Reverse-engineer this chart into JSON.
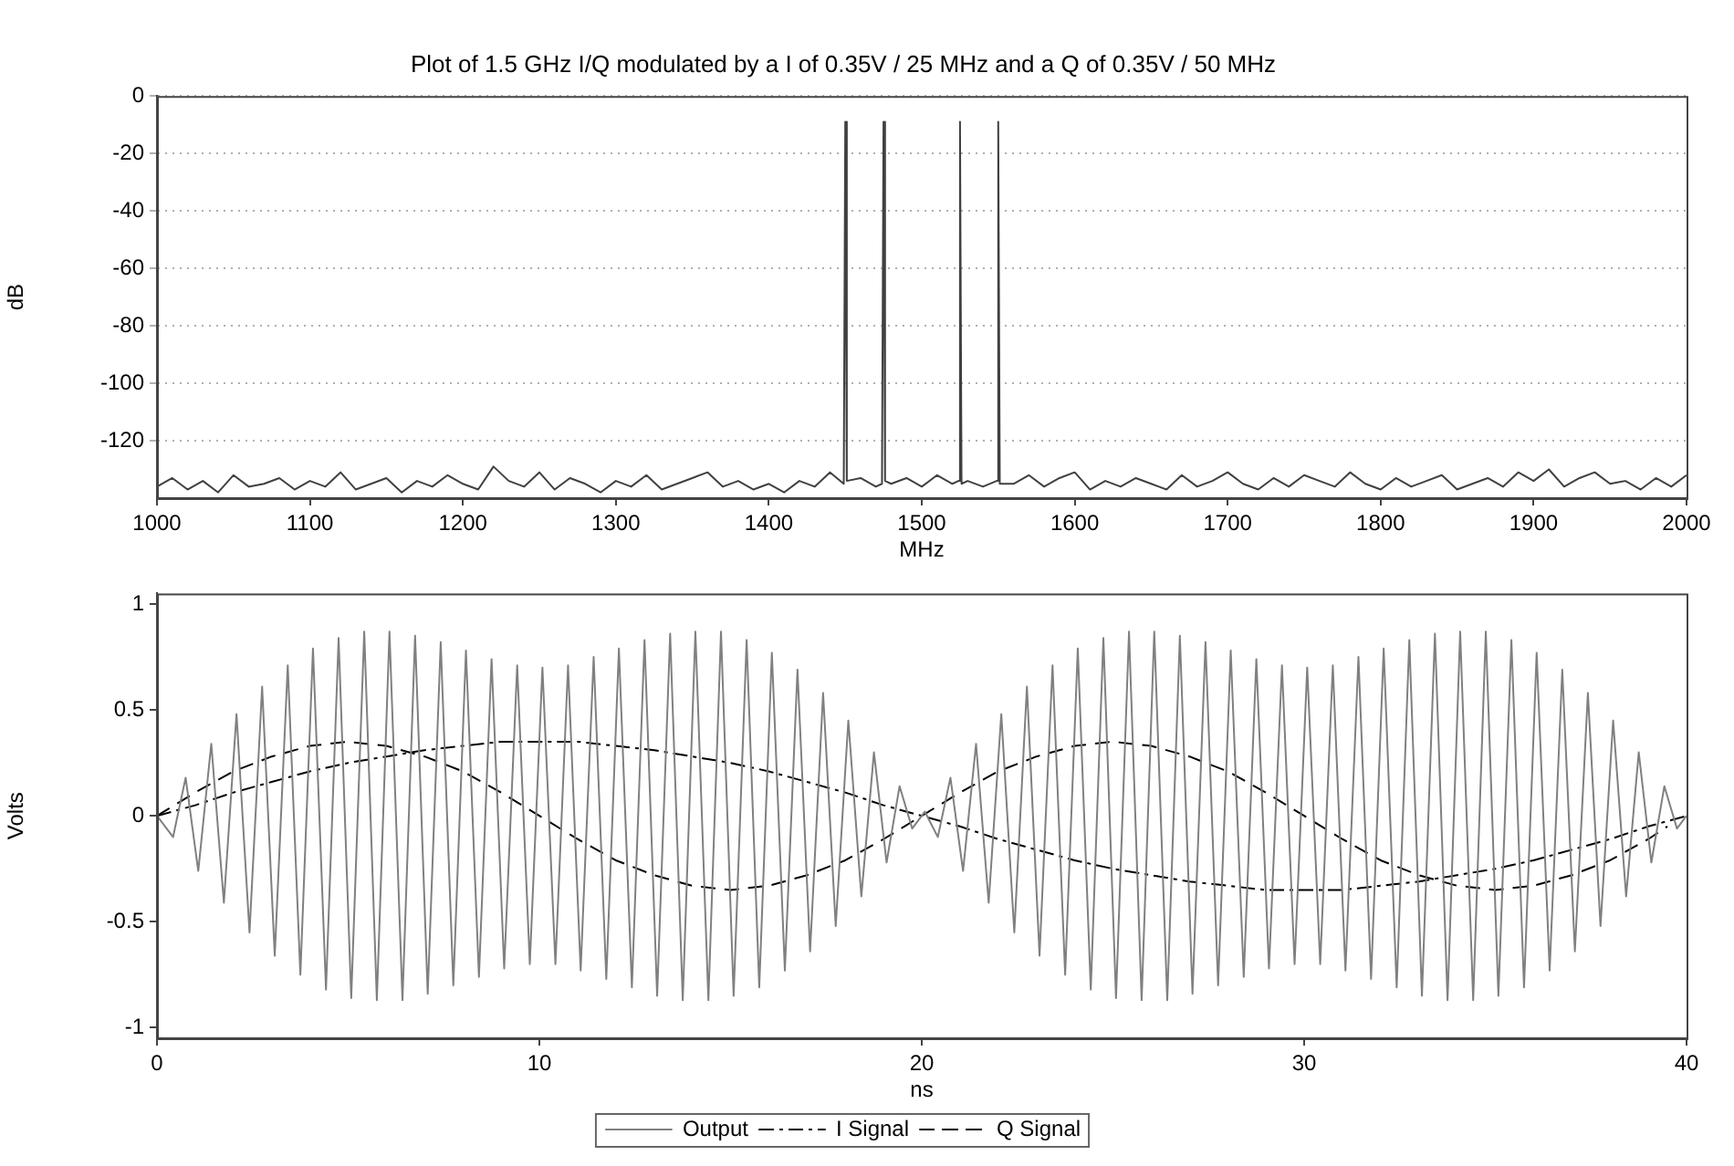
{
  "chart_data": [
    {
      "type": "line",
      "title": "Plot of 1.5 GHz I/Q modulated by a I of 0.35V / 25 MHz and a Q of 0.35V / 50 MHz",
      "xlabel": "MHz",
      "ylabel": "dB",
      "xlim": [
        1000,
        2000
      ],
      "xticks": [
        1000,
        1100,
        1200,
        1300,
        1400,
        1500,
        1600,
        1700,
        1800,
        1900,
        2000
      ],
      "ylim": [
        -140,
        0
      ],
      "yticks": [
        0,
        -20,
        -40,
        -60,
        -80,
        -100,
        -120
      ],
      "grid": "y",
      "legend": false,
      "series": [
        {
          "color": "#404040",
          "x": [
            1000,
            1010,
            1020,
            1030,
            1040,
            1050,
            1060,
            1070,
            1080,
            1090,
            1100,
            1110,
            1120,
            1130,
            1140,
            1150,
            1160,
            1170,
            1180,
            1190,
            1200,
            1210,
            1220,
            1230,
            1240,
            1250,
            1260,
            1270,
            1280,
            1290,
            1300,
            1310,
            1320,
            1330,
            1340,
            1350,
            1360,
            1370,
            1380,
            1390,
            1400,
            1410,
            1420,
            1430,
            1440,
            1449,
            1450,
            1451,
            1460,
            1470,
            1474,
            1475,
            1476,
            1480,
            1490,
            1500,
            1510,
            1520,
            1524,
            1525,
            1526,
            1530,
            1540,
            1549,
            1550,
            1551,
            1560,
            1570,
            1580,
            1590,
            1600,
            1610,
            1620,
            1630,
            1640,
            1650,
            1660,
            1670,
            1680,
            1690,
            1700,
            1710,
            1720,
            1730,
            1740,
            1750,
            1760,
            1770,
            1780,
            1790,
            1800,
            1810,
            1820,
            1830,
            1840,
            1850,
            1860,
            1870,
            1880,
            1890,
            1900,
            1910,
            1920,
            1930,
            1940,
            1950,
            1960,
            1970,
            1980,
            1990,
            2000
          ],
          "values": [
            -136,
            -133,
            -137,
            -134,
            -138,
            -132,
            -136,
            -135,
            -133,
            -137,
            -134,
            -136,
            -131,
            -137,
            -135,
            -133,
            -138,
            -134,
            -136,
            -132,
            -135,
            -137,
            -129,
            -134,
            -136,
            -131,
            -137,
            -133,
            -135,
            -138,
            -134,
            -136,
            -132,
            -137,
            -135,
            -133,
            -131,
            -136,
            -134,
            -137,
            -135,
            -138,
            -134,
            -136,
            -131,
            -135,
            -9,
            -134,
            -133,
            -136,
            -135,
            -9,
            -134,
            -135,
            -133,
            -136,
            -132,
            -135,
            -134,
            -9,
            -135,
            -134,
            -136,
            -134,
            -9,
            -135,
            -135,
            -132,
            -136,
            -133,
            -131,
            -137,
            -134,
            -136,
            -133,
            -135,
            -137,
            -132,
            -136,
            -134,
            -131,
            -135,
            -137,
            -133,
            -136,
            -132,
            -134,
            -136,
            -131,
            -135,
            -137,
            -133,
            -136,
            -134,
            -132,
            -137,
            -135,
            -133,
            -136,
            -131,
            -134,
            -130,
            -136,
            -133,
            -131,
            -135,
            -134,
            -137,
            -133,
            -136,
            -132
          ]
        }
      ]
    },
    {
      "type": "line",
      "xlabel": "ns",
      "ylabel": "Volts",
      "xlim": [
        0,
        40
      ],
      "xticks": [
        0,
        10,
        20,
        30,
        40
      ],
      "ylim": [
        -1.05,
        1.05
      ],
      "yticks": [
        -1,
        -0.5,
        0,
        0.5,
        1
      ],
      "legend": "bottom",
      "series": [
        {
          "name": "Output",
          "color": "#808080",
          "line_style": "solid",
          "x": [
            0,
            0.42,
            0.75,
            1.08,
            1.42,
            1.75,
            2.08,
            2.42,
            2.75,
            3.08,
            3.42,
            3.75,
            4.08,
            4.42,
            4.75,
            5.08,
            5.42,
            5.75,
            6.08,
            6.42,
            6.75,
            7.08,
            7.42,
            7.75,
            8.08,
            8.42,
            8.75,
            9.08,
            9.42,
            9.75,
            10.08,
            10.42,
            10.75,
            11.08,
            11.42,
            11.75,
            12.08,
            12.42,
            12.75,
            13.08,
            13.42,
            13.75,
            14.08,
            14.42,
            14.75,
            15.08,
            15.42,
            15.75,
            16.08,
            16.42,
            16.75,
            17.08,
            17.42,
            17.75,
            18.08,
            18.42,
            18.75,
            19.08,
            19.42,
            19.75,
            20.08,
            20.42,
            20.75,
            21.08,
            21.42,
            21.75,
            22.08,
            22.42,
            22.75,
            23.08,
            23.42,
            23.75,
            24.08,
            24.42,
            24.75,
            25.08,
            25.42,
            25.75,
            26.08,
            26.42,
            26.75,
            27.08,
            27.42,
            27.75,
            28.08,
            28.42,
            28.75,
            29.08,
            29.42,
            29.75,
            30.08,
            30.42,
            30.75,
            31.08,
            31.42,
            31.75,
            32.08,
            32.42,
            32.75,
            33.08,
            33.42,
            33.75,
            34.08,
            34.42,
            34.75,
            35.08,
            35.42,
            35.75,
            36.08,
            36.42,
            36.75,
            37.08,
            37.42,
            37.75,
            38.08,
            38.42,
            38.75,
            39.08,
            39.42,
            39.75,
            40
          ],
          "values": [
            0,
            -0.1,
            0.18,
            -0.26,
            0.34,
            -0.41,
            0.48,
            -0.55,
            0.61,
            -0.66,
            0.71,
            -0.75,
            0.79,
            -0.82,
            0.84,
            -0.86,
            0.87,
            -0.87,
            0.87,
            -0.87,
            0.85,
            -0.84,
            0.82,
            -0.8,
            0.78,
            -0.76,
            0.74,
            -0.72,
            0.71,
            -0.7,
            0.7,
            -0.7,
            0.71,
            -0.73,
            0.75,
            -0.77,
            0.79,
            -0.81,
            0.83,
            -0.85,
            0.86,
            -0.87,
            0.87,
            -0.87,
            0.87,
            -0.85,
            0.83,
            -0.81,
            0.77,
            -0.73,
            0.69,
            -0.64,
            0.58,
            -0.52,
            0.45,
            -0.38,
            0.3,
            -0.22,
            0.14,
            -0.06,
            0.02,
            -0.1,
            0.18,
            -0.26,
            0.34,
            -0.41,
            0.48,
            -0.55,
            0.61,
            -0.66,
            0.71,
            -0.75,
            0.79,
            -0.82,
            0.84,
            -0.86,
            0.87,
            -0.87,
            0.87,
            -0.87,
            0.85,
            -0.84,
            0.82,
            -0.8,
            0.78,
            -0.76,
            0.74,
            -0.72,
            0.71,
            -0.7,
            0.7,
            -0.7,
            0.71,
            -0.73,
            0.75,
            -0.77,
            0.79,
            -0.81,
            0.83,
            -0.85,
            0.86,
            -0.87,
            0.87,
            -0.87,
            0.87,
            -0.85,
            0.83,
            -0.81,
            0.77,
            -0.73,
            0.69,
            -0.64,
            0.58,
            -0.52,
            0.45,
            -0.38,
            0.3,
            -0.22,
            0.14,
            -0.06,
            0
          ]
        },
        {
          "name": "I Signal",
          "color": "#000000",
          "line_style": "dashdot",
          "x": [
            0,
            1,
            2,
            3,
            4,
            5,
            6,
            7,
            8,
            9,
            10,
            11,
            12,
            13,
            14,
            15,
            16,
            17,
            18,
            19,
            20,
            21,
            22,
            23,
            24,
            25,
            26,
            27,
            28,
            29,
            30,
            31,
            32,
            33,
            34,
            35,
            36,
            37,
            38,
            39,
            40
          ],
          "values": [
            0,
            0.05,
            0.11,
            0.16,
            0.21,
            0.25,
            0.28,
            0.31,
            0.33,
            0.35,
            0.35,
            0.35,
            0.33,
            0.31,
            0.28,
            0.25,
            0.21,
            0.16,
            0.11,
            0.05,
            0,
            -0.05,
            -0.11,
            -0.16,
            -0.21,
            -0.25,
            -0.28,
            -0.31,
            -0.33,
            -0.35,
            -0.35,
            -0.35,
            -0.33,
            -0.31,
            -0.28,
            -0.25,
            -0.21,
            -0.16,
            -0.11,
            -0.05,
            0
          ]
        },
        {
          "name": "Q Signal",
          "color": "#000000",
          "line_style": "dashed",
          "x": [
            0,
            1,
            2,
            3,
            4,
            5,
            6,
            7,
            8,
            9,
            10,
            11,
            12,
            13,
            14,
            15,
            16,
            17,
            18,
            19,
            20,
            21,
            22,
            23,
            24,
            25,
            26,
            27,
            28,
            29,
            30,
            31,
            32,
            33,
            34,
            35,
            36,
            37,
            38,
            39,
            39.5
          ],
          "values": [
            0,
            0.11,
            0.21,
            0.28,
            0.33,
            0.35,
            0.33,
            0.28,
            0.21,
            0.11,
            0,
            -0.11,
            -0.21,
            -0.28,
            -0.33,
            -0.35,
            -0.33,
            -0.28,
            -0.21,
            -0.11,
            0,
            0.11,
            0.21,
            0.28,
            0.33,
            0.35,
            0.33,
            0.28,
            0.21,
            0.11,
            0,
            -0.11,
            -0.21,
            -0.28,
            -0.33,
            -0.35,
            -0.33,
            -0.28,
            -0.21,
            -0.11,
            -0.05
          ]
        }
      ]
    }
  ]
}
